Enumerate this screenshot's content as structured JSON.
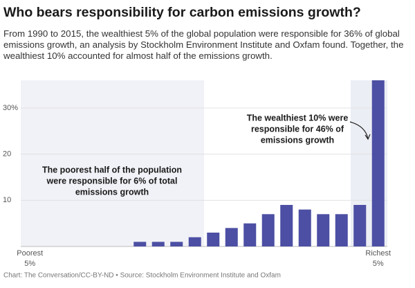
{
  "chart_data": {
    "type": "bar",
    "title": "Who bears responsibility for carbon emissions growth?",
    "subtitle": "From 1990 to 2015, the wealthiest 5% of the global population were responsible for 36% of global emissions growth, an analysis by Stockholm Environment Institute and Oxfam found. Together, the wealthiest 10% accounted for almost half of the emissions growth.",
    "source": "Chart: The Conversation/CC-BY-ND • Source: Stockholm Environment Institute and Oxfam",
    "categories": [
      "Poorest 5%",
      null,
      null,
      null,
      null,
      null,
      null,
      null,
      null,
      null,
      null,
      null,
      null,
      null,
      null,
      null,
      null,
      null,
      null,
      "Richest 5%"
    ],
    "values": [
      0,
      0,
      0,
      0,
      0,
      0,
      1,
      1,
      1,
      2,
      3,
      4,
      5,
      7,
      9,
      8,
      7,
      7,
      9,
      36
    ],
    "color": "#4c4fa3",
    "ylim": [
      0,
      36
    ],
    "yticks": [
      10,
      20,
      {
        "value": 30,
        "label": "30%"
      }
    ],
    "grid": true,
    "annotations": [
      {
        "lines": [
          "The poorest half of the population",
          "were responsible for 6% of total",
          "emissions growth"
        ]
      },
      {
        "lines": [
          "The wealthiest 10% were",
          "responsible for 46% of",
          "emissions growth"
        ]
      }
    ]
  }
}
